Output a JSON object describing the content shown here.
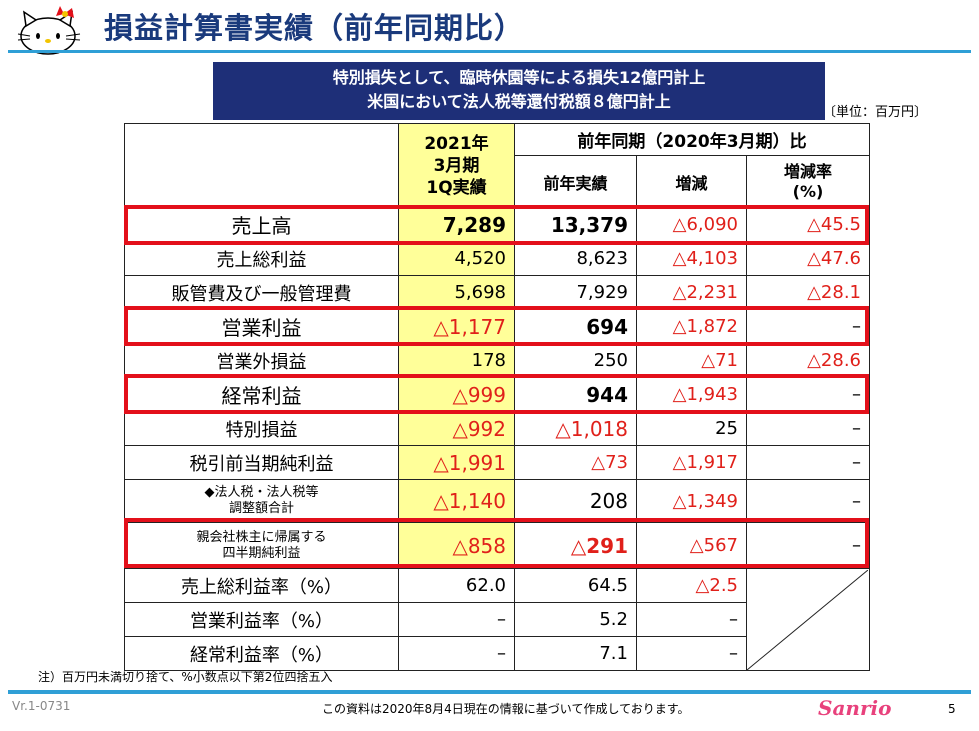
{
  "header": {
    "title": "損益計算書実績（前年同期比）"
  },
  "banner": {
    "line1": "特別損失として、臨時休園等による損失12億円計上",
    "line2": "米国において法人税等還付税額８億円計上"
  },
  "unit_note": "〔単位：百万円〕",
  "table": {
    "col_current_l1": "2021年",
    "col_current_l2": "3月期",
    "col_current_l3": "1Q実績",
    "group_header": "前年同期（2020年3月期）比",
    "col_prior": "前年実績",
    "col_change": "増減",
    "col_rate_l1": "増減率",
    "col_rate_l2": "(%)",
    "rows": [
      {
        "label": "売上高",
        "current": "7,289",
        "prior": "13,379",
        "change": "△6,090",
        "rate": "△45.5"
      },
      {
        "label": "売上総利益",
        "current": "4,520",
        "prior": "8,623",
        "change": "△4,103",
        "rate": "△47.6"
      },
      {
        "label": "販管費及び一般管理費",
        "current": "5,698",
        "prior": "7,929",
        "change": "△2,231",
        "rate": "△28.1"
      },
      {
        "label": "営業利益",
        "current": "△1,177",
        "prior": "694",
        "change": "△1,872",
        "rate": "–"
      },
      {
        "label": "営業外損益",
        "current": "178",
        "prior": "250",
        "change": "△71",
        "rate": "△28.6"
      },
      {
        "label": "経常利益",
        "current": "△999",
        "prior": "944",
        "change": "△1,943",
        "rate": "–"
      },
      {
        "label": "特別損益",
        "current": "△992",
        "prior": "△1,018",
        "change": "25",
        "rate": "–"
      },
      {
        "label": "税引前当期純利益",
        "current": "△1,991",
        "prior": "△73",
        "change": "△1,917",
        "rate": "–"
      },
      {
        "label_l1": "◆法人税・法人税等",
        "label_l2": "調整額合計",
        "current": "△1,140",
        "prior": "208",
        "change": "△1,349",
        "rate": "–"
      },
      {
        "label_l1": "親会社株主に帰属する",
        "label_l2": "四半期純利益",
        "current": "△858",
        "prior": "△291",
        "change": "△567",
        "rate": "–"
      },
      {
        "label": "売上総利益率（%）",
        "current": "62.0",
        "prior": "64.5",
        "change": "△2.5"
      },
      {
        "label": "営業利益率（%）",
        "current": "–",
        "prior": "5.2",
        "change": "–"
      },
      {
        "label": "経常利益率（%）",
        "current": "–",
        "prior": "7.1",
        "change": "–"
      }
    ]
  },
  "note": "注）百万円未満切り捨て、%小数点以下第2位四捨五入",
  "footer": {
    "version": "Vr.1-0731",
    "disclaimer": "この資料は2020年8月4日現在の情報に基づいて作成しております。",
    "brand": "Sanrio",
    "page_number": "5"
  },
  "colors": {
    "title": "#1a3a7c",
    "banner_bg": "#1e2f78",
    "rule": "#2f9fd6",
    "highlight_frame": "#e3101a",
    "negative": "#e0201a",
    "current_col_bg": "#ffff99"
  },
  "icons": {
    "logo": "hello-kitty-logo-icon"
  }
}
